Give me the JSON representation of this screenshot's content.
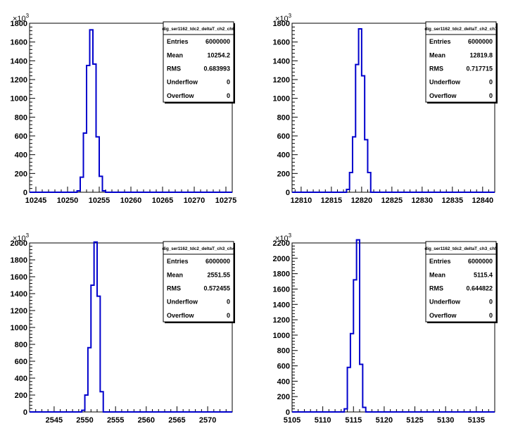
{
  "chart_data": [
    {
      "type": "histogram",
      "exponent_label": "10",
      "exponent_sup": "3",
      "xlim": [
        10244.0,
        10276.0
      ],
      "ylim": [
        0,
        1800
      ],
      "xticks": [
        10245,
        10250,
        10255,
        10260,
        10265,
        10270,
        10275
      ],
      "yticks": [
        0,
        200,
        400,
        600,
        800,
        1000,
        1200,
        1400,
        1600,
        1800
      ],
      "bin_edges": [
        10250.5,
        10251.5,
        10252.0,
        10252.5,
        10253.0,
        10253.5,
        10254.0,
        10254.5,
        10255.0,
        10255.5,
        10256.0,
        10256.5
      ],
      "bin_values": [
        0,
        15,
        160,
        630,
        1350,
        1730,
        1365,
        590,
        170,
        15,
        0
      ],
      "color": "#0000cc",
      "stats": {
        "title": "dig_ser1162_tdc2_deltaT_ch2_ch6",
        "rows": [
          {
            "label": "Entries",
            "value": "6000000"
          },
          {
            "label": "Mean",
            "value": "10254.2"
          },
          {
            "label": "RMS",
            "value": "0.683993"
          },
          {
            "label": "Underflow",
            "value": "0"
          },
          {
            "label": "Overflow",
            "value": "0"
          }
        ]
      }
    },
    {
      "type": "histogram",
      "exponent_label": "10",
      "exponent_sup": "3",
      "xlim": [
        12808.5,
        12842.0
      ],
      "ylim": [
        0,
        1800
      ],
      "xticks": [
        12810,
        12815,
        12820,
        12825,
        12830,
        12835,
        12840
      ],
      "yticks": [
        0,
        200,
        400,
        600,
        800,
        1000,
        1200,
        1400,
        1600,
        1800
      ],
      "bin_edges": [
        12816.5,
        12817.5,
        12818.0,
        12818.5,
        12819.0,
        12819.5,
        12820.0,
        12820.5,
        12821.0,
        12821.5,
        12822.0
      ],
      "bin_values": [
        0,
        30,
        210,
        590,
        1360,
        1740,
        1240,
        560,
        210,
        0
      ],
      "color": "#0000cc",
      "stats": {
        "title": "dig_ser1162_tdc2_deltaT_ch2_ch7",
        "rows": [
          {
            "label": "Entries",
            "value": "6000000"
          },
          {
            "label": "Mean",
            "value": "12819.8"
          },
          {
            "label": "RMS",
            "value": "0.717715"
          },
          {
            "label": "Underflow",
            "value": "0"
          },
          {
            "label": "Overflow",
            "value": "0"
          }
        ]
      }
    },
    {
      "type": "histogram",
      "exponent_label": "10",
      "exponent_sup": "3",
      "xlim": [
        2541.0,
        2574.0
      ],
      "ylim": [
        0,
        2000
      ],
      "xticks": [
        2545,
        2550,
        2555,
        2560,
        2565,
        2570
      ],
      "yticks": [
        0,
        200,
        400,
        600,
        800,
        1000,
        1200,
        1400,
        1600,
        1800,
        2000
      ],
      "bin_edges": [
        2548.5,
        2549.5,
        2550.0,
        2550.5,
        2551.0,
        2551.5,
        2552.0,
        2552.5,
        2553.0,
        2553.5
      ],
      "bin_values": [
        0,
        20,
        200,
        760,
        1500,
        2010,
        1370,
        240,
        0
      ],
      "color": "#0000cc",
      "stats": {
        "title": "dig_ser1162_tdc2_deltaT_ch3_ch4",
        "rows": [
          {
            "label": "Entries",
            "value": "6000000"
          },
          {
            "label": "Mean",
            "value": "2551.55"
          },
          {
            "label": "RMS",
            "value": "0.572455"
          },
          {
            "label": "Underflow",
            "value": "0"
          },
          {
            "label": "Overflow",
            "value": "0"
          }
        ]
      }
    },
    {
      "type": "histogram",
      "exponent_label": "10",
      "exponent_sup": "3",
      "xlim": [
        5105.0,
        5138.0
      ],
      "ylim": [
        0,
        2200
      ],
      "xticks": [
        5105,
        5110,
        5115,
        5120,
        5125,
        5130,
        5135
      ],
      "yticks": [
        0,
        200,
        400,
        600,
        800,
        1000,
        1200,
        1400,
        1600,
        1800,
        2000,
        2200
      ],
      "bin_edges": [
        5112.5,
        5113.5,
        5114.0,
        5114.5,
        5115.0,
        5115.5,
        5116.0,
        5116.5,
        5117.0,
        5117.5
      ],
      "bin_values": [
        0,
        40,
        580,
        1020,
        1720,
        2240,
        620,
        60,
        0
      ],
      "color": "#0000cc",
      "stats": {
        "title": "dig_ser1162_tdc2_deltaT_ch3_ch5",
        "rows": [
          {
            "label": "Entries",
            "value": "6000000"
          },
          {
            "label": "Mean",
            "value": "5115.4"
          },
          {
            "label": "RMS",
            "value": "0.644822"
          },
          {
            "label": "Underflow",
            "value": "0"
          },
          {
            "label": "Overflow",
            "value": "0"
          }
        ]
      }
    }
  ]
}
